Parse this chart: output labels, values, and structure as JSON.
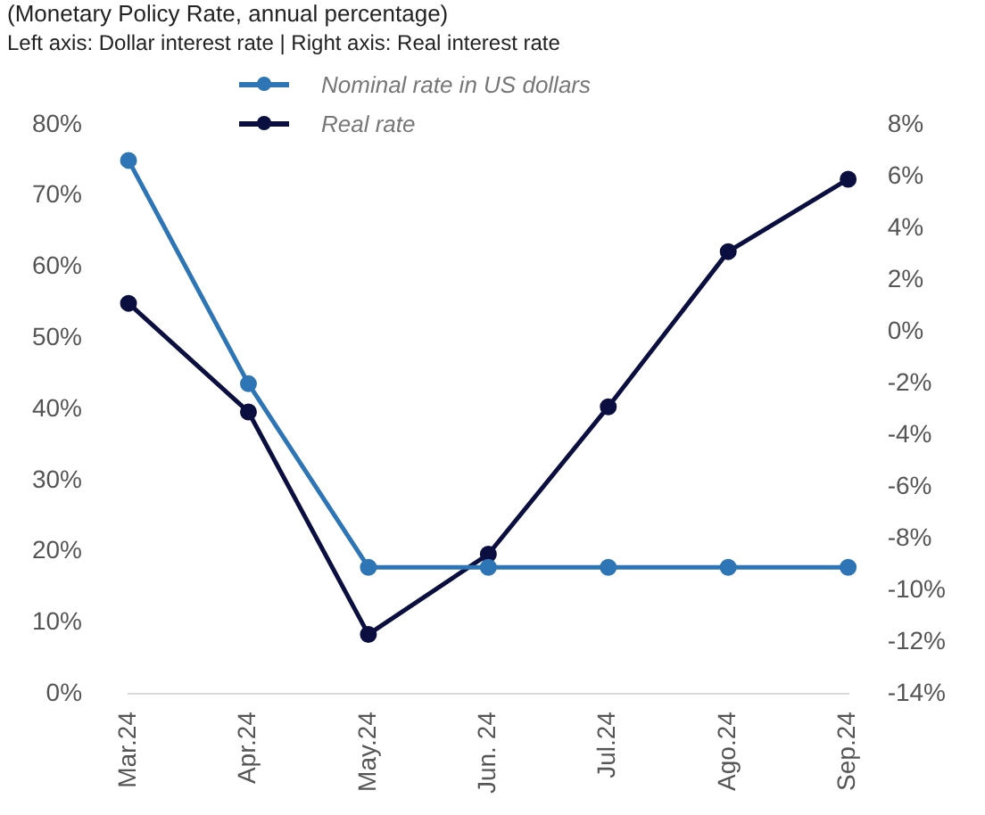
{
  "chart_data": {
    "type": "line",
    "title": "(Monetary Policy Rate, annual percentage)",
    "subtitle": "Left axis: Dollar interest rate | Right axis: Real interest rate",
    "categories": [
      "Mar.24",
      "Apr.24",
      "May.24",
      "Jun. 24",
      "Jul.24",
      "Ago.24",
      "Sep.24"
    ],
    "series": [
      {
        "name": "Nominal rate in US dollars",
        "color": "#2e75b6",
        "values": [
          75,
          43.6,
          17.8,
          17.8,
          17.8,
          17.8,
          17.8
        ]
      },
      {
        "name": "Real rate",
        "color": "#0b0f3f",
        "axis": "y2",
        "values": [
          1.1,
          -3.1,
          -11.7,
          -8.6,
          -2.9,
          3.1,
          5.9
        ]
      }
    ],
    "ylim": [
      0,
      80
    ],
    "yticks": [
      {
        "value": 0,
        "label": "0%"
      },
      {
        "value": 10,
        "label": "10%"
      },
      {
        "value": 20,
        "label": "20%"
      },
      {
        "value": 30,
        "label": "30%"
      },
      {
        "value": 40,
        "label": "40%"
      },
      {
        "value": 50,
        "label": "50%"
      },
      {
        "value": 60,
        "label": "60%"
      },
      {
        "value": 70,
        "label": "70%"
      },
      {
        "value": 80,
        "label": "80%"
      }
    ],
    "y2lim": [
      -14,
      8
    ],
    "y2ticks": [
      {
        "value": -14,
        "label": "-14%"
      },
      {
        "value": -12,
        "label": "-12%"
      },
      {
        "value": -10,
        "label": "-10%"
      },
      {
        "value": -8,
        "label": "-8%"
      },
      {
        "value": -6,
        "label": "-6%"
      },
      {
        "value": -4,
        "label": "-4%"
      },
      {
        "value": -2,
        "label": "-2%"
      },
      {
        "value": 0,
        "label": "0%"
      },
      {
        "value": 2,
        "label": "2%"
      },
      {
        "value": 4,
        "label": "4%"
      },
      {
        "value": 6,
        "label": "6%"
      },
      {
        "value": 8,
        "label": "8%"
      }
    ],
    "grid": false,
    "legend": "top",
    "marker": "circle",
    "line_style": "solid"
  }
}
